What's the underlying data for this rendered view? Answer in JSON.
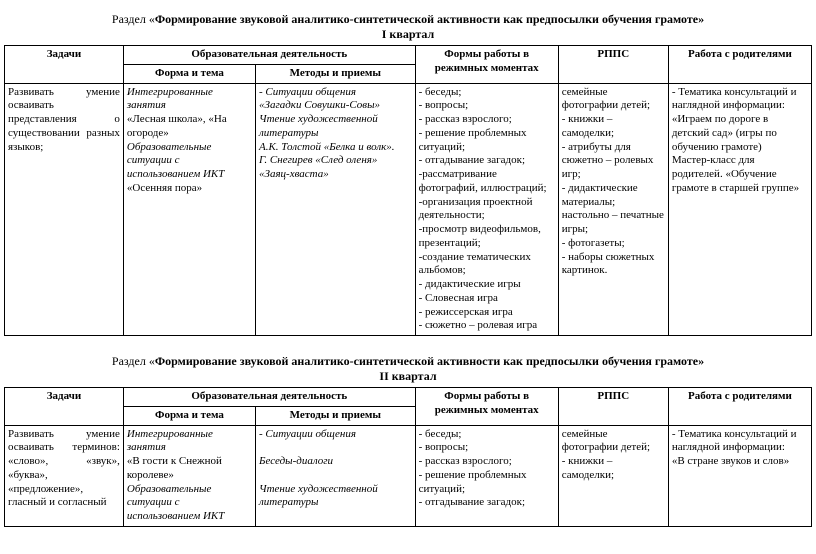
{
  "section1": {
    "title_prefix": "Раздел «",
    "title_bold": "Формирование звуковой аналитико-синтетической активности как предпосылки обучения грамоте»",
    "quarter": "I квартал",
    "headers": {
      "tasks": "Задачи",
      "edu": "Образовательная деятельность",
      "form": "Форма и тема",
      "methods": "Методы и приемы",
      "formy": "Формы работы в режимных моментах",
      "rpps": "РППС",
      "parents": "Работа с родителями"
    },
    "row": {
      "tasks": "Развивать умение осваивать представления о существовании разных языков;",
      "form_italic1": "Интегрированные занятия",
      "form_plain1": "«Лесная школа», «На огороде»",
      "form_italic2": "Образовательные ситуации с использованием ИКТ",
      "form_plain2": "«Осенняя пора»",
      "methods": "- Ситуации общения\n«Загадки Совушки-Совы»\nЧтение художественной литературы\nА.К. Толстой «Белка и волк».\nГ. Снегирев «След оленя»\n«Заяц-хваста»",
      "formy": "- беседы;\n- вопросы;\n- рассказ взрослого;\n- решение проблемных ситуаций;\n- отгадывание загадок;\n-рассматривание фотографий, иллюстраций;\n-организация проектной деятельности;\n-просмотр видеофильмов, презентаций;\n-создание тематических альбомов;\n- дидактические игры\n- Словесная игра\n- режиссерская игра\n- сюжетно – ролевая игра",
      "rpps": "семейные фотографии детей;\n- книжки – самоделки;\n- атрибуты для сюжетно – ролевых игр;\n-  дидактические материалы;\nнастольно – печатные игры;\n- фотогазеты;\n- наборы сюжетных картинок.",
      "parents": "- Тематика консультаций и наглядной информации:\n«Играем по дороге в детский сад» (игры по обучению грамоте)\nМастер-класс для родителей. «Обучение грамоте в старшей группе»"
    }
  },
  "section2": {
    "title_prefix": "Раздел «",
    "title_bold": "Формирование звуковой аналитико-синтетической активности как предпосылки обучения грамоте»",
    "quarter": "II квартал",
    "row": {
      "tasks": "Развивать умение осваивать терминов: «слово», «звук», «буква», «предложение», гласный и согласный",
      "form_italic1": "Интегрированные занятия",
      "form_plain1": "«В гости к Снежной королеве»",
      "form_italic2": "Образовательные ситуации с использованием ИКТ",
      "methods": "- Ситуации общения\n\nБеседы-диалоги\n\nЧтение художественной литературы",
      "formy": "- беседы;\n- вопросы;\n- рассказ взрослого;\n- решение проблемных ситуаций;\n- отгадывание загадок;",
      "rpps": "семейные фотографии детей;\n- книжки – самоделки;",
      "parents": "- Тематика консультаций и наглядной информации:\n«В стране звуков и слов»"
    }
  }
}
